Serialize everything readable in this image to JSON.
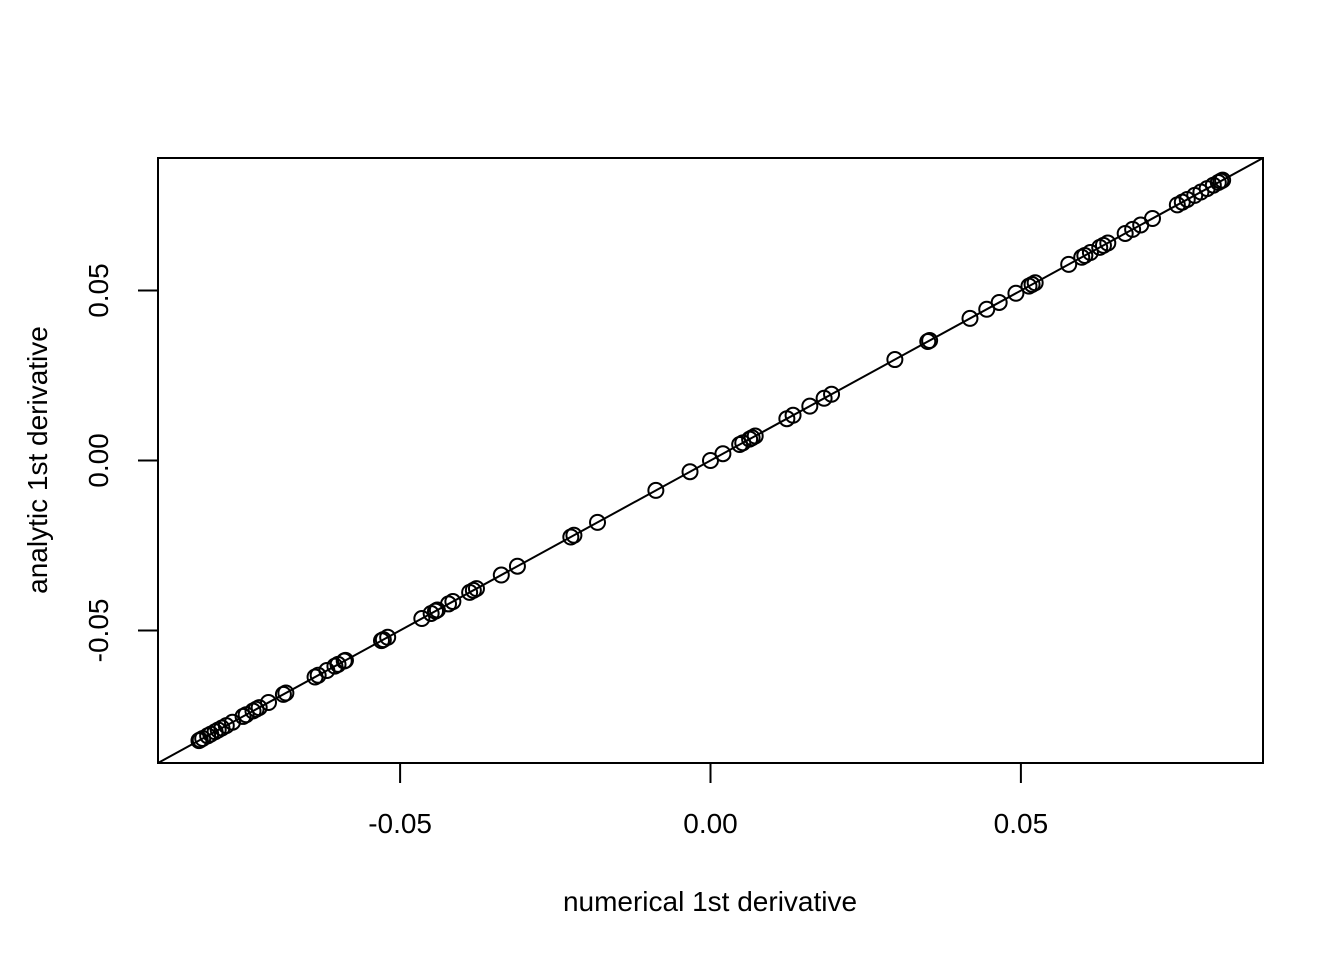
{
  "chart_data": {
    "type": "scatter",
    "title": "",
    "xlabel": "numerical 1st derivative",
    "ylabel": "analytic 1st derivative",
    "xlim": [
      -0.089,
      0.089
    ],
    "ylim": [
      -0.089,
      0.089
    ],
    "x_ticks": [
      -0.05,
      0.0,
      0.05
    ],
    "x_tick_labels": [
      "-0.05",
      "0.00",
      "0.05"
    ],
    "y_ticks": [
      -0.05,
      0.0,
      0.05
    ],
    "y_tick_labels": [
      "-0.05",
      "0.00",
      "0.05"
    ],
    "grid": false,
    "marker": "open-circle",
    "reference_line": {
      "intercept": 0,
      "slope": 1
    },
    "points": [
      [
        -0.0824,
        -0.0824
      ],
      [
        -0.0822,
        -0.0822
      ],
      [
        -0.0818,
        -0.0818
      ],
      [
        -0.081,
        -0.081
      ],
      [
        -0.0805,
        -0.0805
      ],
      [
        -0.0798,
        -0.0798
      ],
      [
        -0.0793,
        -0.0793
      ],
      [
        -0.0787,
        -0.0787
      ],
      [
        -0.078,
        -0.078
      ],
      [
        -0.077,
        -0.077
      ],
      [
        -0.0753,
        -0.0753
      ],
      [
        -0.0748,
        -0.0748
      ],
      [
        -0.0737,
        -0.0737
      ],
      [
        -0.0732,
        -0.0732
      ],
      [
        -0.0727,
        -0.0727
      ],
      [
        -0.0712,
        -0.0712
      ],
      [
        -0.0688,
        -0.0688
      ],
      [
        -0.0684,
        -0.0684
      ],
      [
        -0.0637,
        -0.0637
      ],
      [
        -0.0632,
        -0.0632
      ],
      [
        -0.0618,
        -0.0618
      ],
      [
        -0.0605,
        -0.0605
      ],
      [
        -0.06,
        -0.06
      ],
      [
        -0.059,
        -0.059
      ],
      [
        -0.0588,
        -0.0588
      ],
      [
        -0.053,
        -0.053
      ],
      [
        -0.0527,
        -0.0527
      ],
      [
        -0.052,
        -0.052
      ],
      [
        -0.0465,
        -0.0465
      ],
      [
        -0.045,
        -0.045
      ],
      [
        -0.0443,
        -0.0443
      ],
      [
        -0.044,
        -0.044
      ],
      [
        -0.0422,
        -0.0422
      ],
      [
        -0.0415,
        -0.0415
      ],
      [
        -0.0388,
        -0.0388
      ],
      [
        -0.0382,
        -0.0382
      ],
      [
        -0.0377,
        -0.0377
      ],
      [
        -0.0337,
        -0.0337
      ],
      [
        -0.0311,
        -0.0311
      ],
      [
        -0.0225,
        -0.0225
      ],
      [
        -0.022,
        -0.022
      ],
      [
        -0.0182,
        -0.0182
      ],
      [
        -0.0088,
        -0.0088
      ],
      [
        -0.0033,
        -0.0033
      ],
      [
        0.0,
        0.0
      ],
      [
        0.002,
        0.002
      ],
      [
        0.0047,
        0.0047
      ],
      [
        0.0052,
        0.0052
      ],
      [
        0.0063,
        0.0063
      ],
      [
        0.0067,
        0.0067
      ],
      [
        0.0072,
        0.0072
      ],
      [
        0.0123,
        0.0123
      ],
      [
        0.0133,
        0.0133
      ],
      [
        0.016,
        0.016
      ],
      [
        0.0183,
        0.0183
      ],
      [
        0.0195,
        0.0195
      ],
      [
        0.0297,
        0.0297
      ],
      [
        0.035,
        0.035
      ],
      [
        0.0353,
        0.0353
      ],
      [
        0.0418,
        0.0418
      ],
      [
        0.0445,
        0.0445
      ],
      [
        0.0465,
        0.0465
      ],
      [
        0.0492,
        0.0492
      ],
      [
        0.0513,
        0.0513
      ],
      [
        0.0518,
        0.0518
      ],
      [
        0.0523,
        0.0523
      ],
      [
        0.0577,
        0.0577
      ],
      [
        0.0598,
        0.0598
      ],
      [
        0.0603,
        0.0603
      ],
      [
        0.0612,
        0.0612
      ],
      [
        0.0627,
        0.0627
      ],
      [
        0.0633,
        0.0633
      ],
      [
        0.064,
        0.064
      ],
      [
        0.0668,
        0.0668
      ],
      [
        0.068,
        0.068
      ],
      [
        0.0693,
        0.0693
      ],
      [
        0.0712,
        0.0712
      ],
      [
        0.0752,
        0.0752
      ],
      [
        0.076,
        0.076
      ],
      [
        0.0768,
        0.0768
      ],
      [
        0.078,
        0.078
      ],
      [
        0.079,
        0.079
      ],
      [
        0.08,
        0.08
      ],
      [
        0.081,
        0.081
      ],
      [
        0.0818,
        0.0818
      ],
      [
        0.0822,
        0.0822
      ],
      [
        0.0825,
        0.0825
      ]
    ]
  }
}
